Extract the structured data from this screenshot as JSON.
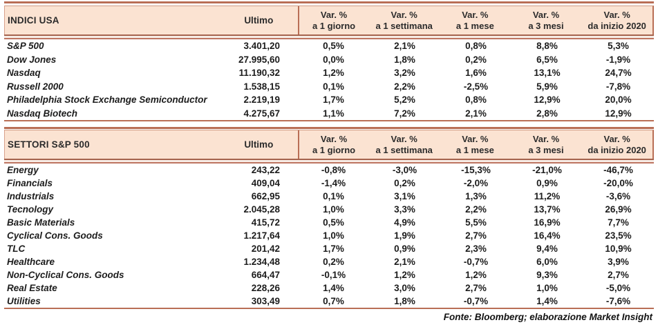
{
  "colors": {
    "header_fill": "#fbe3d2",
    "border_salmon": "#b96e55",
    "text_dark": "#1c1c1c"
  },
  "footer": {
    "text": "Fonte: Bloomberg; elaborazione Market Insight"
  },
  "chart_data": [
    {
      "type": "table",
      "title": "INDICI USA",
      "ultimo_header": "Ultimo",
      "var_headers": [
        {
          "l1": "Var. %",
          "l2": "a 1 giorno"
        },
        {
          "l1": "Var. %",
          "l2": "a 1 settimana"
        },
        {
          "l1": "Var. %",
          "l2": "a 1 mese"
        },
        {
          "l1": "Var. %",
          "l2": "a 3 mesi"
        },
        {
          "l1": "Var. %",
          "l2": "da inizio 2020"
        }
      ],
      "rows": [
        {
          "name": "S&P 500",
          "ultimo": "3.401,20",
          "vars": [
            "0,5%",
            "2,1%",
            "0,8%",
            "8,8%",
            "5,3%"
          ]
        },
        {
          "name": "Dow Jones",
          "ultimo": "27.995,60",
          "vars": [
            "0,0%",
            "1,8%",
            "0,2%",
            "6,5%",
            "-1,9%"
          ]
        },
        {
          "name": "Nasdaq",
          "ultimo": "11.190,32",
          "vars": [
            "1,2%",
            "3,2%",
            "1,6%",
            "13,1%",
            "24,7%"
          ]
        },
        {
          "name": "Russell 2000",
          "ultimo": "1.538,15",
          "vars": [
            "0,1%",
            "2,2%",
            "-2,5%",
            "5,9%",
            "-7,8%"
          ]
        },
        {
          "name": "Philadelphia Stock Exchange Semiconductor",
          "ultimo": "2.219,19",
          "vars": [
            "1,7%",
            "5,2%",
            "0,8%",
            "12,9%",
            "20,0%"
          ]
        },
        {
          "name": "Nasdaq Biotech",
          "ultimo": "4.275,67",
          "vars": [
            "1,1%",
            "7,2%",
            "2,1%",
            "2,8%",
            "12,9%"
          ]
        }
      ]
    },
    {
      "type": "table",
      "title": "SETTORI S&P 500",
      "ultimo_header": "Ultimo",
      "var_headers": [
        {
          "l1": "Var. %",
          "l2": "a 1 giorno"
        },
        {
          "l1": "Var. %",
          "l2": "a 1 settimana"
        },
        {
          "l1": "Var. %",
          "l2": "a 1 mese"
        },
        {
          "l1": "Var. %",
          "l2": "a 3 mesi"
        },
        {
          "l1": "Var. %",
          "l2": "da inizio 2020"
        }
      ],
      "rows": [
        {
          "name": "Energy",
          "ultimo": "243,22",
          "vars": [
            "-0,8%",
            "-3,0%",
            "-15,3%",
            "-21,0%",
            "-46,7%"
          ]
        },
        {
          "name": "Financials",
          "ultimo": "409,04",
          "vars": [
            "-1,4%",
            "0,2%",
            "-2,0%",
            "0,9%",
            "-20,0%"
          ]
        },
        {
          "name": "Industrials",
          "ultimo": "662,95",
          "vars": [
            "0,1%",
            "3,1%",
            "1,3%",
            "11,2%",
            "-3,6%"
          ]
        },
        {
          "name": "Tecnology",
          "ultimo": "2.045,28",
          "vars": [
            "1,0%",
            "3,3%",
            "2,2%",
            "13,7%",
            "26,9%"
          ]
        },
        {
          "name": "Basic Materials",
          "ultimo": "415,72",
          "vars": [
            "0,5%",
            "4,9%",
            "5,5%",
            "16,9%",
            "7,7%"
          ]
        },
        {
          "name": "Cyclical Cons. Goods",
          "ultimo": "1.217,64",
          "vars": [
            "1,0%",
            "1,9%",
            "2,7%",
            "16,4%",
            "23,5%"
          ]
        },
        {
          "name": "TLC",
          "ultimo": "201,42",
          "vars": [
            "1,7%",
            "0,9%",
            "2,3%",
            "9,4%",
            "10,9%"
          ]
        },
        {
          "name": "Healthcare",
          "ultimo": "1.234,48",
          "vars": [
            "0,2%",
            "2,1%",
            "-0,7%",
            "6,0%",
            "3,9%"
          ]
        },
        {
          "name": "Non-Cyclical Cons. Goods",
          "ultimo": "664,47",
          "vars": [
            "-0,1%",
            "1,2%",
            "1,2%",
            "9,3%",
            "2,7%"
          ]
        },
        {
          "name": "Real Estate",
          "ultimo": "228,26",
          "vars": [
            "1,4%",
            "3,0%",
            "2,7%",
            "1,0%",
            "-5,0%"
          ]
        },
        {
          "name": "Utilities",
          "ultimo": "303,49",
          "vars": [
            "0,7%",
            "1,8%",
            "-0,7%",
            "1,4%",
            "-7,6%"
          ]
        }
      ]
    }
  ]
}
